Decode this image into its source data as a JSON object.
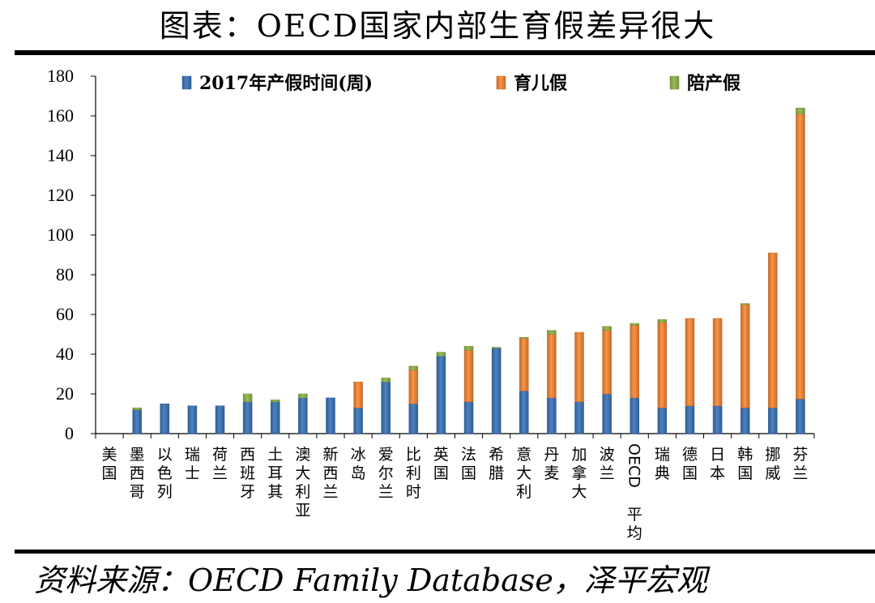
{
  "header": {
    "title": "图表：OECD国家内部生育假差异很大"
  },
  "footer": {
    "source": "资料来源：OECD Family Database，泽平宏观"
  },
  "colors": {
    "maternity": "#4f81bd",
    "parental": "#f79646",
    "paternity": "#9bbb59"
  },
  "chart_data": {
    "type": "bar",
    "stacked": true,
    "title": "",
    "xlabel": "",
    "ylabel": "",
    "ylim": [
      0,
      180
    ],
    "yticks": [
      0,
      20,
      40,
      60,
      80,
      100,
      120,
      140,
      160,
      180
    ],
    "legend_position": "top",
    "grid": false,
    "categories": [
      "美国",
      "墨西哥",
      "以色列",
      "瑞士",
      "荷兰",
      "西班牙",
      "土耳其",
      "澳大利亚",
      "新西兰",
      "冰岛",
      "爱尔兰",
      "比利时",
      "英国",
      "法国",
      "希腊",
      "意大利",
      "丹麦",
      "加拿大",
      "波兰",
      "OECD平均",
      "瑞典",
      "德国",
      "日本",
      "韩国",
      "挪威",
      "芬兰"
    ],
    "series": [
      {
        "name": "2017年产假时间(周)",
        "values": [
          0,
          12,
          15,
          14,
          14,
          16,
          16,
          18,
          18,
          13,
          26,
          15,
          39,
          16,
          43,
          21.5,
          18,
          16,
          20,
          18,
          13,
          14,
          14,
          13,
          13,
          17.5
        ]
      },
      {
        "name": "育儿假",
        "values": [
          0,
          0,
          0,
          0,
          0,
          0,
          0,
          0,
          0,
          13,
          0,
          17,
          0,
          26,
          0,
          26.5,
          32,
          35,
          32,
          36.5,
          43,
          44,
          44,
          52,
          78,
          143.5
        ]
      },
      {
        "name": "陪产假",
        "values": [
          0,
          1,
          0,
          0,
          0,
          4,
          1,
          2,
          0,
          0,
          2,
          2,
          2,
          2,
          0.5,
          0.5,
          2,
          0,
          2,
          1,
          1.5,
          0,
          0,
          0.5,
          0,
          3
        ]
      }
    ]
  }
}
